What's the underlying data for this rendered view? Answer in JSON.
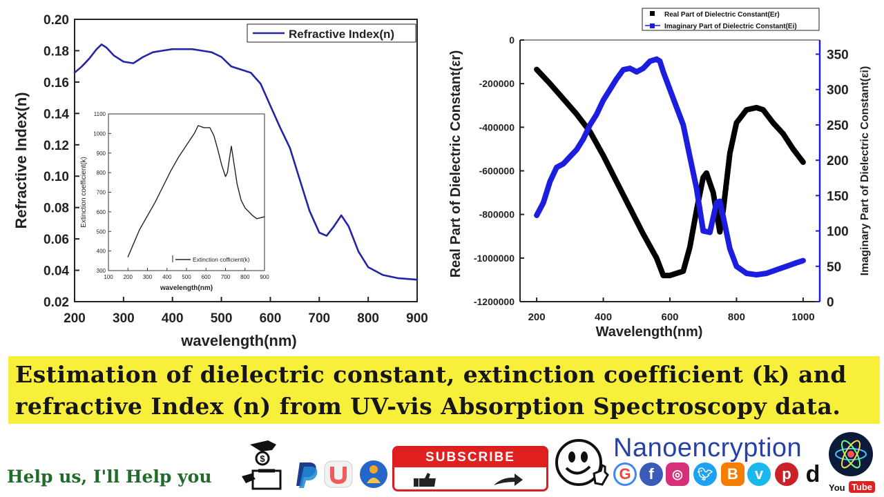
{
  "chart_data": [
    {
      "type": "line",
      "xlabel": "wavelength(nm)",
      "ylabel": "Refractive Index(n)",
      "xlim": [
        200,
        900
      ],
      "ylim": [
        0.02,
        0.2
      ],
      "xticks": [
        200,
        300,
        400,
        500,
        600,
        700,
        800,
        900
      ],
      "yticks": [
        0.02,
        0.04,
        0.06,
        0.08,
        0.1,
        0.12,
        0.14,
        0.16,
        0.18,
        0.2
      ],
      "legend": "top-right",
      "grid": false,
      "series": [
        {
          "name": "Refractive Index(n)",
          "color": "#2323a8",
          "x": [
            200,
            215,
            230,
            245,
            255,
            265,
            280,
            300,
            320,
            340,
            360,
            380,
            400,
            420,
            440,
            460,
            480,
            500,
            520,
            540,
            560,
            580,
            600,
            620,
            640,
            660,
            680,
            700,
            715,
            730,
            745,
            760,
            780,
            800,
            830,
            860,
            900
          ],
          "y": [
            0.166,
            0.17,
            0.175,
            0.181,
            0.184,
            0.182,
            0.177,
            0.173,
            0.172,
            0.176,
            0.179,
            0.18,
            0.181,
            0.181,
            0.181,
            0.18,
            0.179,
            0.176,
            0.17,
            0.168,
            0.166,
            0.159,
            0.145,
            0.131,
            0.118,
            0.098,
            0.078,
            0.064,
            0.062,
            0.068,
            0.075,
            0.068,
            0.052,
            0.042,
            0.037,
            0.035,
            0.034
          ]
        }
      ]
    },
    {
      "type": "line",
      "xlabel": "wavelength(nm)",
      "ylabel": "Extinction coefficient(k)",
      "xlim": [
        100,
        900
      ],
      "ylim": [
        300,
        1100
      ],
      "xticks": [
        100,
        200,
        300,
        400,
        500,
        600,
        700,
        800,
        900
      ],
      "yticks": [
        300,
        400,
        500,
        600,
        700,
        800,
        900,
        1000,
        1100
      ],
      "legend": "bottom-right",
      "series": [
        {
          "name": "Extinction cofficient(k)",
          "color": "#222222",
          "x": [
            200,
            230,
            260,
            300,
            340,
            380,
            420,
            460,
            500,
            540,
            560,
            590,
            620,
            640,
            660,
            680,
            700,
            710,
            720,
            730,
            740,
            760,
            780,
            800,
            820,
            840,
            860,
            880,
            900
          ],
          "y": [
            370,
            440,
            510,
            580,
            650,
            730,
            810,
            880,
            940,
            1000,
            1040,
            1030,
            1030,
            990,
            920,
            840,
            780,
            800,
            870,
            935,
            870,
            740,
            660,
            620,
            600,
            580,
            565,
            570,
            575
          ]
        }
      ]
    },
    {
      "type": "line",
      "xlabel": "Wavelength(nm)",
      "ylabel": "Real Part of Dielectric Constant(εr)",
      "ylabel_right": "Imaginary Part of Dielectric Constant(εi)",
      "xlim": [
        150,
        1050
      ],
      "ylim": [
        -1200000,
        0
      ],
      "ylim_right": [
        0,
        370
      ],
      "xticks": [
        200,
        400,
        600,
        800,
        1000
      ],
      "yticks": [
        0,
        -200000,
        -400000,
        -600000,
        -800000,
        -1000000,
        -1200000
      ],
      "yticks_right": [
        0,
        50,
        100,
        150,
        200,
        250,
        300,
        350
      ],
      "legend": "top",
      "series": [
        {
          "name": "Real Part of Dielectric Constant(Er)",
          "axis": "left",
          "color": "#000000",
          "x": [
            200,
            240,
            280,
            320,
            360,
            400,
            440,
            480,
            520,
            560,
            580,
            600,
            640,
            660,
            680,
            700,
            710,
            730,
            750,
            760,
            780,
            800,
            830,
            860,
            880,
            910,
            940,
            970,
            1000
          ],
          "y": [
            -135000,
            -200000,
            -270000,
            -340000,
            -420000,
            -530000,
            -650000,
            -770000,
            -890000,
            -1000000,
            -1080000,
            -1080000,
            -1060000,
            -950000,
            -780000,
            -630000,
            -610000,
            -700000,
            -880000,
            -780000,
            -520000,
            -380000,
            -320000,
            -310000,
            -320000,
            -380000,
            -430000,
            -500000,
            -560000
          ]
        },
        {
          "name": "Imaginary Part of Dielectric Constant(Ei)",
          "axis": "right",
          "color": "#1d1de0",
          "x": [
            200,
            220,
            240,
            260,
            280,
            300,
            320,
            340,
            360,
            380,
            400,
            420,
            440,
            460,
            480,
            500,
            520,
            540,
            560,
            570,
            580,
            600,
            620,
            640,
            660,
            680,
            700,
            720,
            740,
            750,
            760,
            780,
            800,
            830,
            860,
            890,
            920,
            950,
            980,
            1000
          ],
          "y": [
            122,
            140,
            170,
            190,
            195,
            205,
            215,
            230,
            250,
            265,
            285,
            300,
            315,
            328,
            330,
            325,
            330,
            340,
            343,
            340,
            325,
            300,
            275,
            250,
            205,
            160,
            100,
            98,
            140,
            142,
            120,
            75,
            50,
            40,
            38,
            40,
            45,
            50,
            55,
            58
          ]
        }
      ]
    }
  ],
  "banner": {
    "line1": "Estimation of dielectric constant, extinction coefficient (k) and",
    "line2": "refractive Index (n) from UV-vis Absorption Spectroscopy data."
  },
  "footer": {
    "help_text": "Help us, I'll Help you",
    "subscribe_label": "SUBSCRIBE",
    "brand": "Nanoencryption",
    "youtube_label": "YouTube",
    "social_icons": [
      "google-icon",
      "facebook-icon",
      "instagram-icon",
      "twitter-icon",
      "blogger-icon",
      "vimeo-icon",
      "pinterest-icon",
      "dailymotion-icon"
    ]
  }
}
